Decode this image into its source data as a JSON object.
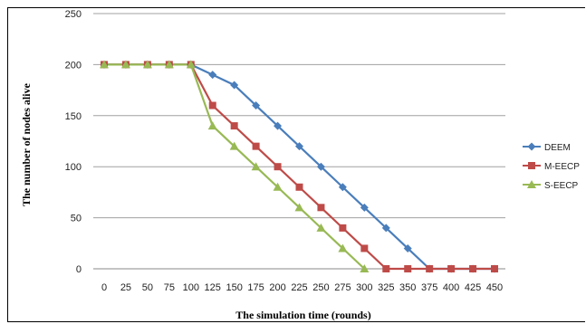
{
  "chart_data": {
    "type": "line",
    "title": "",
    "xlabel": "The simulation time (rounds)",
    "ylabel": "The number of nodes alive",
    "x": [
      0,
      25,
      50,
      75,
      100,
      125,
      150,
      175,
      200,
      225,
      250,
      275,
      300,
      325,
      350,
      375,
      400,
      425,
      450
    ],
    "x_ticks": [
      "0",
      "25",
      "50",
      "75",
      "100",
      "125",
      "150",
      "175",
      "200",
      "225",
      "250",
      "275",
      "300",
      "325",
      "350",
      "375",
      "400",
      "425",
      "450"
    ],
    "ylim": [
      0,
      250
    ],
    "y_ticks": [
      "0",
      "50",
      "100",
      "150",
      "200",
      "250"
    ],
    "grid": true,
    "legend": "right",
    "series": [
      {
        "name": "DEEM",
        "color": "#4a7ebb",
        "marker": "diamond",
        "values": [
          200,
          200,
          200,
          200,
          200,
          190,
          180,
          160,
          140,
          120,
          100,
          80,
          60,
          40,
          20,
          0,
          0,
          0,
          0
        ]
      },
      {
        "name": "M-EECP",
        "color": "#be4b48",
        "marker": "square",
        "values": [
          200,
          200,
          200,
          200,
          200,
          160,
          140,
          120,
          100,
          80,
          60,
          40,
          20,
          0,
          0,
          0,
          0,
          0,
          0
        ]
      },
      {
        "name": "S-EECP",
        "color": "#98b954",
        "marker": "triangle",
        "values": [
          200,
          200,
          200,
          200,
          200,
          140,
          120,
          100,
          80,
          60,
          40,
          20,
          0,
          null,
          null,
          null,
          null,
          null,
          null
        ]
      }
    ]
  }
}
